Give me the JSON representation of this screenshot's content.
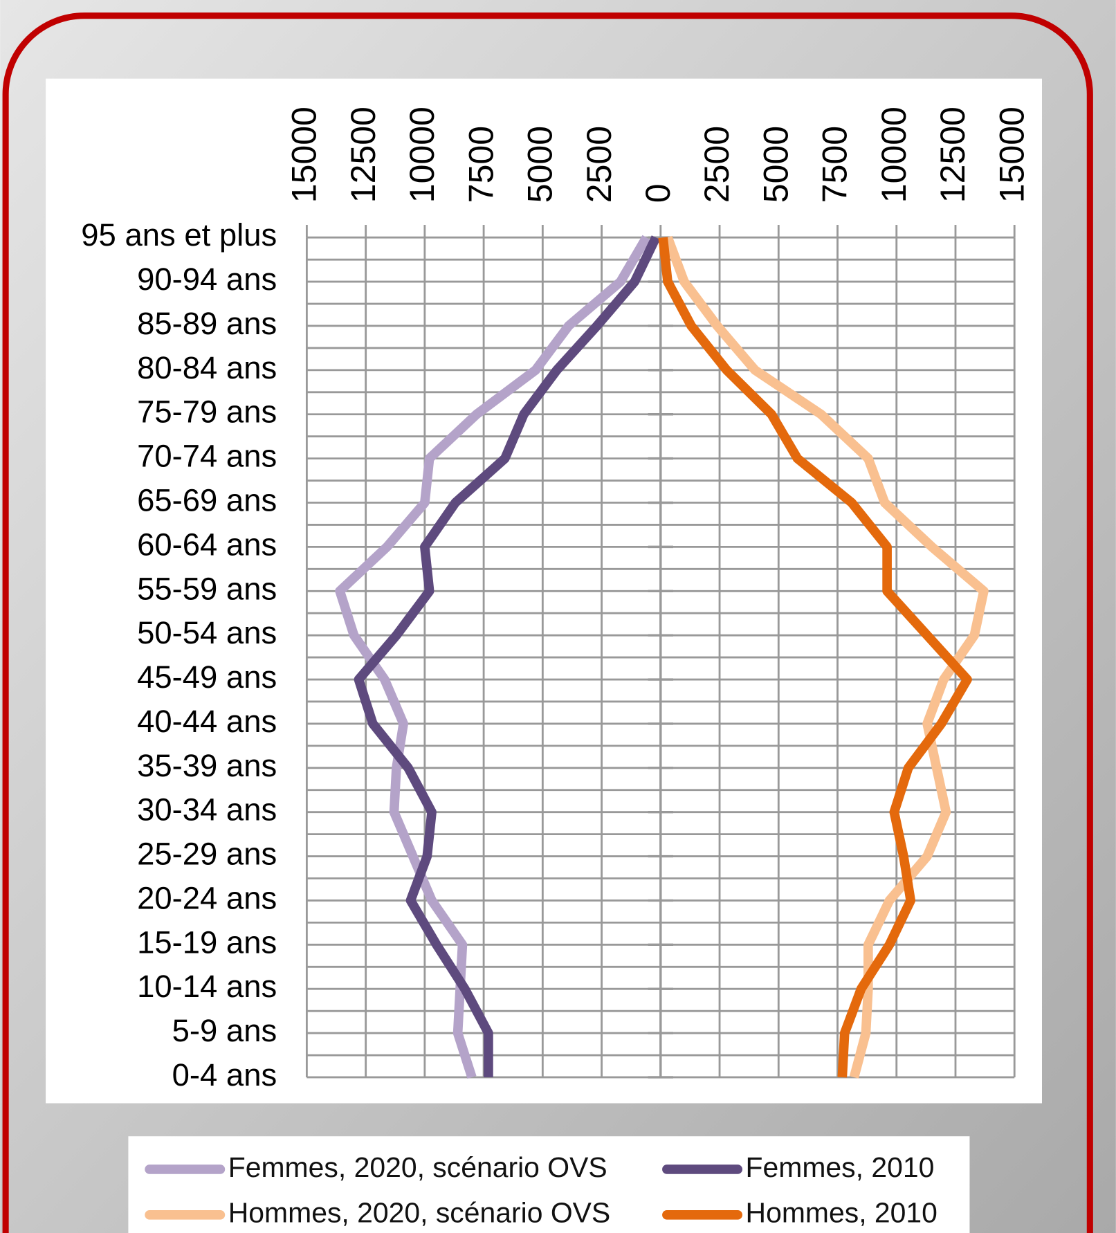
{
  "chart_data": {
    "type": "line",
    "orientation": "horizontal",
    "categories": [
      "0-4 ans",
      "5-9 ans",
      "10-14 ans",
      "15-19 ans",
      "20-24 ans",
      "25-29 ans",
      "30-34 ans",
      "35-39 ans",
      "40-44 ans",
      "45-49 ans",
      "50-54 ans",
      "55-59 ans",
      "60-64 ans",
      "65-69 ans",
      "70-74 ans",
      "75-79 ans",
      "80-84 ans",
      "85-89 ans",
      "90-94 ans",
      "95 ans et plus"
    ],
    "series": [
      {
        "name": "Femmes, 2020, scénario OVS",
        "color": "#b4a3c9",
        "values": [
          -8000,
          -8600,
          -8500,
          -8400,
          -9700,
          -10500,
          -11300,
          -11200,
          -10900,
          -11700,
          -13000,
          -13600,
          -11600,
          -10000,
          -9800,
          -7800,
          -5300,
          -3900,
          -1700,
          -600
        ]
      },
      {
        "name": "Femmes, 2010",
        "color": "#5e4a7e",
        "values": [
          -7300,
          -7300,
          -8300,
          -9500,
          -10600,
          -9900,
          -9700,
          -10700,
          -12200,
          -12800,
          -11200,
          -9800,
          -10000,
          -8700,
          -6600,
          -5800,
          -4400,
          -2700,
          -1100,
          -200
        ]
      },
      {
        "name": "Hommes, 2020, scénario OVS",
        "color": "#f9c090",
        "values": [
          8200,
          8700,
          8800,
          8800,
          9700,
          11300,
          12100,
          11700,
          11300,
          12000,
          13300,
          13700,
          11500,
          9500,
          8800,
          6800,
          4000,
          2400,
          1000,
          300
        ]
      },
      {
        "name": "Hommes, 2010",
        "color": "#e4690c",
        "values": [
          7700,
          7800,
          8500,
          9700,
          10600,
          10300,
          9900,
          10500,
          11900,
          13000,
          11300,
          9600,
          9600,
          8100,
          5800,
          4700,
          2800,
          1300,
          300,
          100
        ]
      }
    ],
    "xlim": [
      -15000,
      15000
    ],
    "xticks": [
      {
        "value": -15000,
        "label": "15000"
      },
      {
        "value": -12500,
        "label": "12500"
      },
      {
        "value": -10000,
        "label": "10000"
      },
      {
        "value": -7500,
        "label": "7500"
      },
      {
        "value": -5000,
        "label": "5000"
      },
      {
        "value": -2500,
        "label": "2500"
      },
      0,
      2500,
      5000,
      7500,
      10000,
      12500,
      15000
    ],
    "grid": true
  }
}
